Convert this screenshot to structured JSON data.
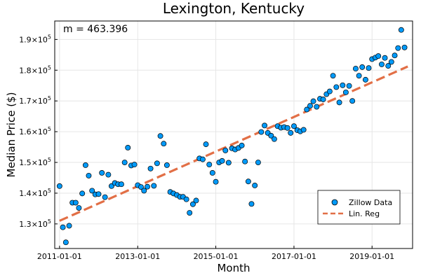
{
  "chart_data": {
    "type": "scatter",
    "title": "Lexington, Kentucky",
    "xlabel": "Month",
    "ylabel": "Median Price ($)",
    "annotation": "m = 463.396",
    "x_range": [
      "2011-01-01",
      "2019-12-01"
    ],
    "xlim": [
      "2010-11-17",
      "2020-01-15"
    ],
    "ylim": [
      122000,
      196000
    ],
    "x_ticks": [
      "2011-01-01",
      "2013-01-01",
      "2015-01-01",
      "2017-01-01",
      "2019-01-01"
    ],
    "y_ticks": [
      130000,
      140000,
      150000,
      160000,
      170000,
      180000,
      190000
    ],
    "y_tick_mantissas": [
      "1.3",
      "1.4",
      "1.5",
      "1.6",
      "1.7",
      "1.8",
      "1.9"
    ],
    "y_tick_base": "×10",
    "y_tick_exponent": "5",
    "grid": true,
    "legend_position": "bottom-right",
    "series": [
      {
        "name": "Zillow Data",
        "kind": "scatter",
        "color": "#009AF9",
        "values": [
          142300,
          128900,
          124000,
          129400,
          136900,
          136900,
          135200,
          139900,
          149100,
          145700,
          140800,
          139600,
          139700,
          146600,
          138700,
          146000,
          142300,
          143300,
          142900,
          142900,
          150000,
          154800,
          149000,
          149300,
          142600,
          142000,
          140800,
          142100,
          148000,
          142400,
          149700,
          158600,
          156100,
          149100,
          140400,
          139900,
          139400,
          138800,
          138800,
          138000,
          133600,
          136400,
          137600,
          151300,
          151000,
          155900,
          149300,
          146600,
          143700,
          150000,
          150500,
          153900,
          149900,
          154600,
          154200,
          154700,
          155500,
          150300,
          143800,
          136500,
          142500,
          150000,
          159900,
          162000,
          159600,
          158700,
          157600,
          161800,
          161300,
          161500,
          161200,
          159600,
          161800,
          160500,
          160100,
          160600,
          167200,
          168400,
          169900,
          168100,
          170700,
          170500,
          172200,
          173100,
          178200,
          174500,
          169500,
          175100,
          172800,
          174900,
          170000,
          180500,
          178200,
          181000,
          176900,
          180700,
          183600,
          184100,
          184600,
          181900,
          184000,
          181400,
          182700,
          184800,
          187200,
          193100,
          187400
        ]
      },
      {
        "name": "Lin. Reg",
        "kind": "line",
        "color": "#E26F46",
        "start": 131000,
        "end": 181200
      }
    ]
  }
}
